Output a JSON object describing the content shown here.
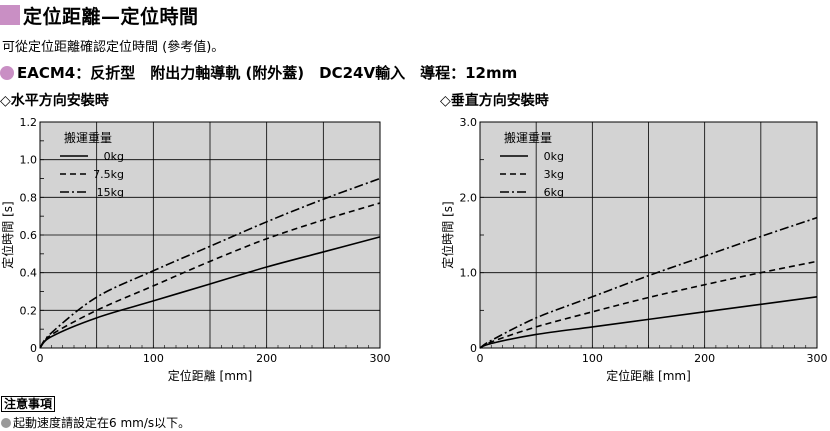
{
  "header": {
    "title": "定位距離—定位時間",
    "subtitle": "可從定位距離確認定位時間 (參考值)。"
  },
  "model": {
    "text": "EACM4：反折型　附出力軸導軌 (附外蓋)　DC24V輸入　導程：12mm"
  },
  "colors": {
    "accent": "#c98fc4",
    "grid": "#000000",
    "plot_bg": "#d3d3d3"
  },
  "chart_data": [
    {
      "type": "line",
      "section_label": "◇水平方向安裝時",
      "xlabel": "定位距離 [mm]",
      "ylabel": "定位時間 [s]",
      "legend_title": "搬運重量",
      "xlim": [
        0,
        300
      ],
      "ylim": [
        0,
        1.2
      ],
      "xticks": [
        "0",
        "100",
        "200",
        "300"
      ],
      "yticks": [
        "0",
        "0.2",
        "0.4",
        "0.6",
        "0.8",
        "1.0",
        "1.2"
      ],
      "grid": true,
      "legend_position": "top-left",
      "x": [
        0,
        10,
        50,
        100,
        150,
        200,
        250,
        300
      ],
      "series": [
        {
          "name": "0kg",
          "style": "solid",
          "values": [
            0,
            0.06,
            0.16,
            0.25,
            0.34,
            0.43,
            0.51,
            0.59
          ]
        },
        {
          "name": "7.5kg",
          "style": "dashed",
          "values": [
            0,
            0.07,
            0.2,
            0.33,
            0.46,
            0.58,
            0.68,
            0.77
          ]
        },
        {
          "name": "15kg",
          "style": "dashdot",
          "values": [
            0,
            0.08,
            0.27,
            0.41,
            0.54,
            0.67,
            0.79,
            0.9
          ]
        }
      ]
    },
    {
      "type": "line",
      "section_label": "◇垂直方向安裝時",
      "xlabel": "定位距離 [mm]",
      "ylabel": "定位時間 [s]",
      "legend_title": "搬運重量",
      "xlim": [
        0,
        300
      ],
      "ylim": [
        0,
        3.0
      ],
      "xticks": [
        "0",
        "100",
        "200",
        "300"
      ],
      "yticks": [
        "0",
        "1.0",
        "2.0",
        "3.0"
      ],
      "grid": true,
      "legend_position": "top-left",
      "x": [
        0,
        10,
        50,
        100,
        150,
        200,
        250,
        300
      ],
      "series": [
        {
          "name": "0kg",
          "style": "solid",
          "values": [
            0,
            0.06,
            0.18,
            0.28,
            0.38,
            0.48,
            0.58,
            0.68
          ]
        },
        {
          "name": "3kg",
          "style": "dashed",
          "values": [
            0,
            0.08,
            0.28,
            0.48,
            0.67,
            0.84,
            1.0,
            1.15
          ]
        },
        {
          "name": "6kg",
          "style": "dashdot",
          "values": [
            0,
            0.1,
            0.4,
            0.68,
            0.96,
            1.22,
            1.48,
            1.73
          ]
        }
      ]
    }
  ],
  "notes": {
    "label": "注意事項",
    "items": [
      "起動速度請設定在6 mm/s以下。"
    ]
  }
}
